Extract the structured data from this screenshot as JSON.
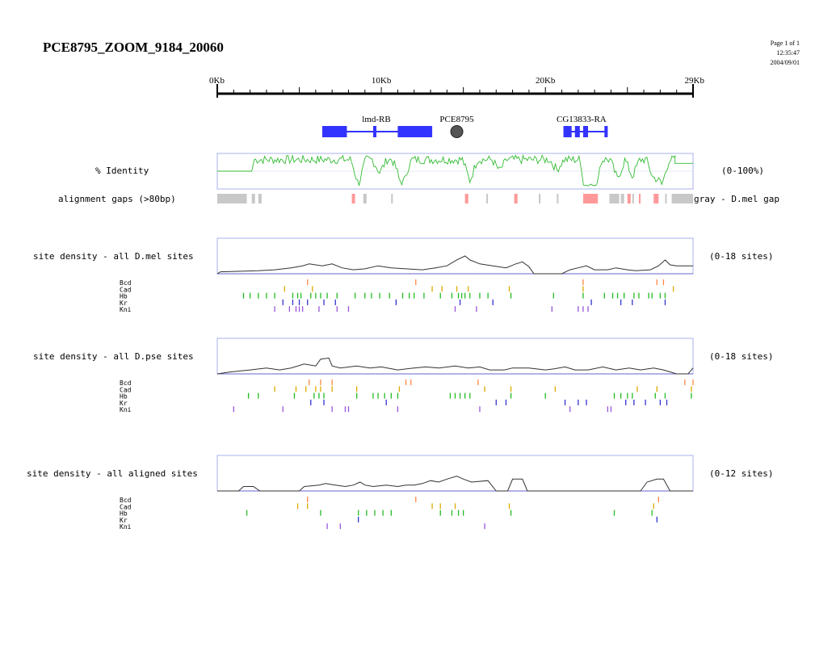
{
  "header": {
    "title": "PCE8795_ZOOM_9184_20060",
    "page": "Page 1 of 1",
    "time": "12:35:47",
    "date": "2004/09/01"
  },
  "ruler": {
    "min_kb": 0,
    "max_kb": 29,
    "ticks": [
      {
        "kb": 0,
        "label": "0Kb"
      },
      {
        "kb": 10,
        "label": "10Kb"
      },
      {
        "kb": 20,
        "label": "20Kb"
      },
      {
        "kb": 29,
        "label": "29Kb"
      }
    ]
  },
  "genes": [
    {
      "name": "lmd-RB",
      "label_kb": 9.7,
      "color": "#3333ff",
      "exons": [
        [
          6.4,
          7.9
        ],
        [
          9.5,
          9.7
        ],
        [
          11.0,
          13.1
        ]
      ],
      "span": [
        6.4,
        13.1
      ]
    },
    {
      "name": "CG13833-RA",
      "label_kb": 22.2,
      "color": "#3333ff",
      "exons": [
        [
          21.1,
          21.6
        ],
        [
          21.8,
          22.1
        ],
        [
          22.3,
          22.6
        ],
        [
          23.6,
          23.8
        ]
      ],
      "span": [
        21.1,
        23.8
      ]
    }
  ],
  "enhancer": {
    "name": "PCE8795",
    "kb": 14.6,
    "color": "#555555"
  },
  "identity": {
    "label": "% Identity",
    "range": "(0-100%)",
    "color": "#33bb33",
    "flat_until_kb": 2.1,
    "flat_after_kb": 27.9
  },
  "gaps": {
    "label": "alignment gaps (>80bp)",
    "legend": "gray - D.mel gap",
    "gray_color": "#c8c8c8",
    "pink_color": "#ff9999",
    "gray": [
      [
        0,
        1.8
      ],
      [
        2.1,
        2.3
      ],
      [
        2.5,
        2.7
      ],
      [
        8.9,
        9.1
      ],
      [
        10.6,
        10.7
      ],
      [
        16.4,
        16.5
      ],
      [
        19.6,
        19.7
      ],
      [
        20.7,
        20.8
      ],
      [
        23.9,
        24.5
      ],
      [
        24.6,
        24.8
      ],
      [
        25.3,
        25.4
      ],
      [
        27.3,
        27.4
      ],
      [
        27.7,
        29
      ]
    ],
    "pink": [
      [
        8.2,
        8.4
      ],
      [
        15.1,
        15.3
      ],
      [
        18.1,
        18.3
      ],
      [
        22.3,
        23.2
      ],
      [
        25.0,
        25.2
      ],
      [
        25.7,
        25.8
      ],
      [
        26.6,
        26.9
      ]
    ]
  },
  "tracks": [
    {
      "label": "site density - all D.mel sites",
      "range": "(0-18 sites)",
      "ymax": 18,
      "profile": [
        [
          0,
          0
        ],
        [
          0.2,
          1
        ],
        [
          2.5,
          1.5
        ],
        [
          3.5,
          2
        ],
        [
          4.5,
          3
        ],
        [
          5.2,
          4
        ],
        [
          5.6,
          5
        ],
        [
          6.4,
          4
        ],
        [
          7.0,
          5
        ],
        [
          7.6,
          3
        ],
        [
          8.3,
          2
        ],
        [
          9.0,
          2.5
        ],
        [
          9.8,
          4
        ],
        [
          10.6,
          3
        ],
        [
          11.5,
          2.5
        ],
        [
          12.5,
          2
        ],
        [
          13.3,
          3
        ],
        [
          14.0,
          4
        ],
        [
          14.6,
          7
        ],
        [
          15.1,
          9
        ],
        [
          15.4,
          7
        ],
        [
          16.0,
          5
        ],
        [
          16.8,
          4
        ],
        [
          17.6,
          3
        ],
        [
          18.2,
          5
        ],
        [
          18.6,
          6
        ],
        [
          19.0,
          3.5
        ],
        [
          19.3,
          0
        ],
        [
          21.0,
          0
        ],
        [
          21.5,
          2
        ],
        [
          22.0,
          3
        ],
        [
          22.5,
          4
        ],
        [
          23.0,
          2
        ],
        [
          23.8,
          2
        ],
        [
          24.3,
          3
        ],
        [
          25.0,
          2
        ],
        [
          25.5,
          1.5
        ],
        [
          26.4,
          2
        ],
        [
          26.9,
          4
        ],
        [
          27.3,
          7
        ],
        [
          27.6,
          4.5
        ],
        [
          28.0,
          4
        ],
        [
          29,
          4
        ]
      ],
      "sites": [
        {
          "name": "Bcd",
          "color": "#ff8844",
          "pos": [
            5.5,
            12.1,
            22.3,
            26.8,
            27.2
          ]
        },
        {
          "name": "Cad",
          "color": "#ddaa00",
          "pos": [
            4.1,
            5.8,
            13.1,
            13.7,
            14.6,
            15.3,
            17.8,
            22.3,
            27.8
          ]
        },
        {
          "name": "Hb",
          "color": "#22bb22",
          "pos": [
            1.6,
            2.0,
            2.5,
            3.0,
            3.5,
            4.6,
            4.9,
            5.1,
            5.7,
            6.0,
            6.3,
            6.7,
            7.3,
            8.4,
            9.0,
            9.4,
            9.9,
            10.5,
            11.3,
            11.7,
            12.0,
            12.6,
            13.6,
            14.3,
            14.7,
            14.9,
            15.1,
            15.4,
            16.0,
            16.5,
            17.9,
            20.5,
            22.3,
            23.6,
            24.1,
            24.4,
            24.8,
            25.4,
            25.7,
            26.3,
            26.5,
            27.0,
            27.3
          ]
        },
        {
          "name": "Kr",
          "color": "#3333cc",
          "pos": [
            4.0,
            4.6,
            5.0,
            5.5,
            6.5,
            7.2,
            10.9,
            14.8,
            16.8,
            22.8,
            24.6,
            25.3,
            27.3
          ]
        },
        {
          "name": "Kni",
          "color": "#9955dd",
          "pos": [
            3.5,
            4.4,
            4.8,
            5.0,
            5.2,
            6.2,
            7.3,
            8.0,
            14.5,
            15.8,
            20.4,
            22.0,
            22.3,
            22.6
          ]
        }
      ]
    },
    {
      "label": "site density - all D.pse sites",
      "range": "(0-18 sites)",
      "ymax": 18,
      "profile": [
        [
          0,
          0
        ],
        [
          0.8,
          1
        ],
        [
          2.0,
          2
        ],
        [
          3.0,
          3
        ],
        [
          3.8,
          2
        ],
        [
          4.5,
          3
        ],
        [
          5.3,
          5
        ],
        [
          6.0,
          4
        ],
        [
          6.3,
          7.5
        ],
        [
          6.8,
          8
        ],
        [
          7.0,
          4
        ],
        [
          7.5,
          3
        ],
        [
          8.5,
          4
        ],
        [
          9.3,
          3
        ],
        [
          10.0,
          3.5
        ],
        [
          11.0,
          2
        ],
        [
          12.0,
          3
        ],
        [
          12.7,
          3.5
        ],
        [
          13.5,
          3
        ],
        [
          14.5,
          4
        ],
        [
          15.3,
          3
        ],
        [
          16.0,
          3.5
        ],
        [
          16.6,
          2
        ],
        [
          17.5,
          2
        ],
        [
          18.0,
          3
        ],
        [
          19.0,
          3
        ],
        [
          20.0,
          2
        ],
        [
          20.5,
          2.5
        ],
        [
          21.2,
          3.5
        ],
        [
          21.8,
          2
        ],
        [
          22.6,
          2
        ],
        [
          23.5,
          3.5
        ],
        [
          24.3,
          2
        ],
        [
          25.1,
          3
        ],
        [
          25.8,
          2
        ],
        [
          26.6,
          3
        ],
        [
          27.2,
          2
        ],
        [
          28.0,
          0
        ],
        [
          28.7,
          0
        ],
        [
          29,
          3
        ]
      ],
      "sites": [
        {
          "name": "Bcd",
          "color": "#ff8844",
          "pos": [
            5.6,
            6.3,
            7.0,
            11.5,
            11.8,
            15.9,
            28.5,
            29.0
          ]
        },
        {
          "name": "Cad",
          "color": "#ddaa00",
          "pos": [
            3.5,
            4.8,
            5.4,
            6.0,
            6.3,
            7.0,
            8.5,
            11.1,
            16.3,
            17.9,
            20.6,
            25.6,
            26.8,
            28.9
          ]
        },
        {
          "name": "Hb",
          "color": "#22bb22",
          "pos": [
            1.9,
            2.5,
            4.7,
            5.9,
            6.2,
            6.5,
            8.5,
            9.5,
            9.8,
            10.2,
            10.6,
            11.0,
            14.2,
            14.5,
            14.8,
            15.1,
            15.4,
            17.9,
            20.0,
            24.2,
            24.6,
            25.0,
            25.3,
            26.7,
            27.3,
            28.9
          ]
        },
        {
          "name": "Kr",
          "color": "#3333cc",
          "pos": [
            5.7,
            6.5,
            10.3,
            17.0,
            17.6,
            21.2,
            22.0,
            22.5,
            24.9,
            25.4,
            26.1,
            27.0,
            27.4
          ]
        },
        {
          "name": "Kni",
          "color": "#9955dd",
          "pos": [
            1.0,
            4.0,
            7.0,
            7.8,
            8.0,
            11.0,
            16.0,
            21.5,
            23.8,
            24.0
          ]
        }
      ]
    },
    {
      "label": "site density - all aligned sites",
      "range": "(0-12 sites)",
      "ymax": 12,
      "profile": [
        [
          0,
          0
        ],
        [
          1.3,
          0
        ],
        [
          1.6,
          1.5
        ],
        [
          2.2,
          1.5
        ],
        [
          2.6,
          0
        ],
        [
          5.0,
          0
        ],
        [
          5.3,
          1.5
        ],
        [
          6.2,
          2
        ],
        [
          6.6,
          2.5
        ],
        [
          7.2,
          2
        ],
        [
          7.8,
          1.5
        ],
        [
          8.3,
          2
        ],
        [
          8.7,
          3
        ],
        [
          9.0,
          2
        ],
        [
          9.5,
          1.5
        ],
        [
          10.3,
          2
        ],
        [
          11.0,
          1.5
        ],
        [
          11.5,
          2
        ],
        [
          12.0,
          2
        ],
        [
          12.5,
          2.5
        ],
        [
          13.0,
          3.5
        ],
        [
          13.5,
          3
        ],
        [
          14.0,
          4
        ],
        [
          14.6,
          5
        ],
        [
          15.0,
          4
        ],
        [
          15.5,
          3
        ],
        [
          16.5,
          3.5
        ],
        [
          17.0,
          0
        ],
        [
          17.7,
          0
        ],
        [
          18.0,
          4
        ],
        [
          18.6,
          4
        ],
        [
          18.9,
          0
        ],
        [
          25.8,
          0
        ],
        [
          26.2,
          3
        ],
        [
          26.8,
          4
        ],
        [
          27.2,
          4
        ],
        [
          27.6,
          0
        ],
        [
          29,
          0
        ]
      ],
      "sites": [
        {
          "name": "Bcd",
          "color": "#ff8844",
          "pos": [
            5.5,
            12.1,
            26.9
          ]
        },
        {
          "name": "Cad",
          "color": "#ddaa00",
          "pos": [
            4.9,
            5.5,
            13.1,
            13.6,
            14.5,
            17.8,
            26.6
          ]
        },
        {
          "name": "Hb",
          "color": "#22bb22",
          "pos": [
            1.8,
            6.3,
            8.6,
            9.1,
            9.6,
            10.1,
            10.6,
            13.6,
            14.3,
            14.7,
            15.0,
            17.9,
            24.2,
            26.5
          ]
        },
        {
          "name": "Kr",
          "color": "#3333cc",
          "pos": [
            8.6,
            26.8
          ]
        },
        {
          "name": "Kni",
          "color": "#9955dd",
          "pos": [
            6.7,
            7.5,
            16.3
          ]
        }
      ]
    }
  ],
  "chart_data": [
    {
      "type": "line",
      "title": "% Identity",
      "ylim": [
        0,
        100
      ],
      "series": [
        {
          "name": "% Identity",
          "x": [
            0,
            2.1,
            2.4,
            3,
            4,
            5,
            6,
            7,
            8,
            8.5,
            9,
            10,
            11,
            11.5,
            12,
            13,
            14,
            15,
            15.4,
            16,
            17,
            18,
            19,
            20,
            21,
            21.5,
            22,
            23,
            23.5,
            24,
            25,
            26,
            27,
            27.9,
            29
          ],
          "y": [
            52,
            52,
            85,
            80,
            82,
            78,
            84,
            80,
            76,
            40,
            82,
            80,
            78,
            55,
            84,
            82,
            80,
            78,
            45,
            82,
            80,
            84,
            78,
            80,
            82,
            60,
            20,
            20,
            70,
            80,
            55,
            70,
            40,
            72,
            72
          ]
        }
      ]
    },
    {
      "type": "line",
      "title": "site density - all D.mel sites",
      "ylim": [
        0,
        18
      ],
      "series": [
        {
          "name": "all D.mel sites",
          "x": [
            0,
            2.5,
            5.6,
            8.3,
            11.5,
            15.1,
            16.8,
            18.6,
            19.3,
            21.0,
            22.5,
            25.5,
            27.3,
            29
          ],
          "y": [
            0,
            1.5,
            5,
            2,
            2.5,
            9,
            4,
            6,
            0,
            0,
            4,
            1.5,
            7,
            4
          ]
        }
      ]
    },
    {
      "type": "line",
      "title": "site density - all D.pse sites",
      "ylim": [
        0,
        18
      ],
      "series": [
        {
          "name": "all D.pse sites",
          "x": [
            0,
            3.0,
            6.8,
            9.3,
            14.5,
            17.5,
            21.2,
            23.5,
            27.2,
            28.0,
            29
          ],
          "y": [
            0,
            3,
            8,
            3,
            4,
            2,
            3.5,
            3.5,
            2,
            0,
            3
          ]
        }
      ]
    },
    {
      "type": "line",
      "title": "site density - all aligned sites",
      "ylim": [
        0,
        12
      ],
      "series": [
        {
          "name": "all aligned sites",
          "x": [
            0,
            1.6,
            2.6,
            5.3,
            8.7,
            14.6,
            17.0,
            18.0,
            18.9,
            26.8,
            27.6,
            29
          ],
          "y": [
            0,
            1.5,
            0,
            1.5,
            3,
            5,
            0,
            4,
            0,
            4,
            0,
            0
          ]
        }
      ]
    }
  ]
}
